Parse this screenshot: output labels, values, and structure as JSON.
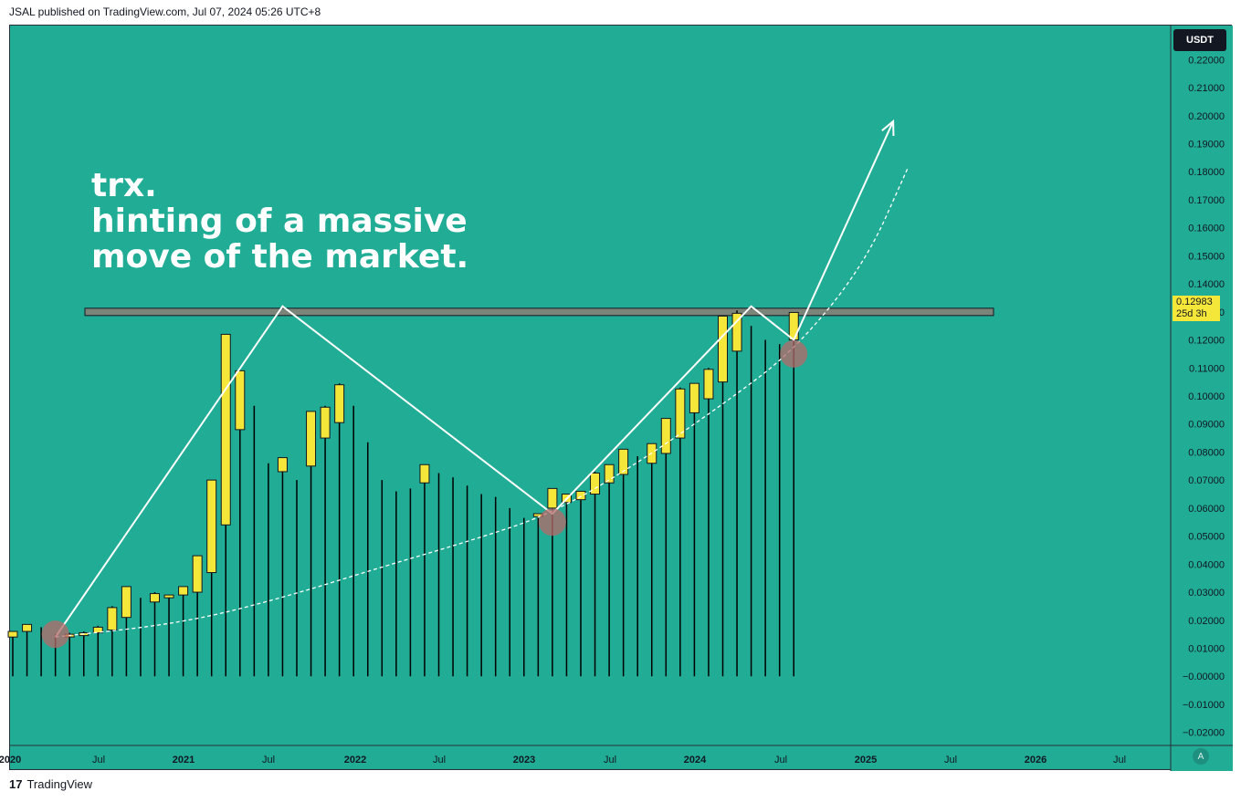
{
  "header": {
    "published": "JSAL published on TradingView.com, Jul 07, 2024 05:26 UTC+8"
  },
  "annotation": {
    "line1": "trx.",
    "line2": "hinting of a massive",
    "line3": "move of the market."
  },
  "price_scale": {
    "currency": "USDT",
    "last_price": "0.12983",
    "countdown": "25d 3h",
    "ticks": [
      "0.22000",
      "0.21000",
      "0.20000",
      "0.19000",
      "0.18000",
      "0.17000",
      "0.16000",
      "0.15000",
      "0.14000",
      "0.13000",
      "0.12000",
      "0.11000",
      "0.10000",
      "0.09000",
      "0.08000",
      "0.07000",
      "0.06000",
      "0.05000",
      "0.04000",
      "0.03000",
      "0.02000",
      "0.01000",
      "−0.00000",
      "−0.01000",
      "−0.02000"
    ]
  },
  "time_axis": {
    "labels": [
      "2020",
      "Jul",
      "2021",
      "Jul",
      "2022",
      "Jul",
      "2023",
      "Jul",
      "2024",
      "Jul",
      "2025",
      "Jul",
      "2026",
      "Jul"
    ]
  },
  "footer": {
    "brand": "TradingView",
    "logo_glyph": "17"
  },
  "colors": {
    "background": "#20ac95",
    "bull_body": "#f5e63a",
    "wick": "#000000",
    "drawing": "#ffffff",
    "marker": "#b76a6a",
    "resistance": "#7a8478"
  },
  "chart_data": {
    "type": "candlestick",
    "interval": "monthly",
    "title": "",
    "y_range": [
      -0.025,
      0.225
    ],
    "x_start": "2020-01",
    "candles": [
      {
        "t": "2020-01",
        "o": 0.014,
        "h": 0.016,
        "l": 0.0,
        "c": 0.016
      },
      {
        "t": "2020-02",
        "o": 0.016,
        "h": 0.0185,
        "l": 0.0,
        "c": 0.0185
      },
      {
        "t": "2020-03",
        "o": 0.0175,
        "h": 0.0175,
        "l": 0.0,
        "c": 0.016
      },
      {
        "t": "2020-04",
        "o": 0.0135,
        "h": 0.015,
        "l": 0.0,
        "c": 0.013
      },
      {
        "t": "2020-05",
        "o": 0.0145,
        "h": 0.0155,
        "l": 0.0,
        "c": 0.015
      },
      {
        "t": "2020-06",
        "o": 0.015,
        "h": 0.016,
        "l": 0.0,
        "c": 0.0155
      },
      {
        "t": "2020-07",
        "o": 0.0155,
        "h": 0.018,
        "l": 0.0,
        "c": 0.0175
      },
      {
        "t": "2020-08",
        "o": 0.0165,
        "h": 0.025,
        "l": 0.0,
        "c": 0.0245
      },
      {
        "t": "2020-09",
        "o": 0.021,
        "h": 0.032,
        "l": 0.0,
        "c": 0.032
      },
      {
        "t": "2020-10",
        "o": 0.027,
        "h": 0.028,
        "l": 0.0,
        "c": 0.026
      },
      {
        "t": "2020-11",
        "o": 0.0265,
        "h": 0.03,
        "l": 0.0,
        "c": 0.0295
      },
      {
        "t": "2020-12",
        "o": 0.028,
        "h": 0.029,
        "l": 0.0,
        "c": 0.029
      },
      {
        "t": "2021-01",
        "o": 0.029,
        "h": 0.032,
        "l": 0.0,
        "c": 0.032
      },
      {
        "t": "2021-02",
        "o": 0.03,
        "h": 0.043,
        "l": 0.0,
        "c": 0.043
      },
      {
        "t": "2021-03",
        "o": 0.037,
        "h": 0.07,
        "l": 0.0,
        "c": 0.07
      },
      {
        "t": "2021-04",
        "o": 0.054,
        "h": 0.122,
        "l": 0.0,
        "c": 0.122
      },
      {
        "t": "2021-05",
        "o": 0.088,
        "h": 0.109,
        "l": 0.0,
        "c": 0.109
      },
      {
        "t": "2021-06",
        "o": 0.096,
        "h": 0.0965,
        "l": 0.0,
        "c": 0.068
      },
      {
        "t": "2021-07",
        "o": 0.076,
        "h": 0.076,
        "l": 0.0,
        "c": 0.056
      },
      {
        "t": "2021-08",
        "o": 0.073,
        "h": 0.078,
        "l": 0.0,
        "c": 0.078
      },
      {
        "t": "2021-09",
        "o": 0.07,
        "h": 0.07,
        "l": 0.0,
        "c": 0.068
      },
      {
        "t": "2021-10",
        "o": 0.075,
        "h": 0.0945,
        "l": 0.0,
        "c": 0.0945
      },
      {
        "t": "2021-11",
        "o": 0.085,
        "h": 0.0965,
        "l": 0.0,
        "c": 0.096
      },
      {
        "t": "2021-12",
        "o": 0.0905,
        "h": 0.1045,
        "l": 0.0,
        "c": 0.104
      },
      {
        "t": "2022-01",
        "o": 0.096,
        "h": 0.0965,
        "l": 0.0,
        "c": 0.08
      },
      {
        "t": "2022-02",
        "o": 0.083,
        "h": 0.0835,
        "l": 0.0,
        "c": 0.062
      },
      {
        "t": "2022-03",
        "o": 0.07,
        "h": 0.07,
        "l": 0.0,
        "c": 0.066
      },
      {
        "t": "2022-04",
        "o": 0.066,
        "h": 0.066,
        "l": 0.0,
        "c": 0.062
      },
      {
        "t": "2022-05",
        "o": 0.067,
        "h": 0.067,
        "l": 0.0,
        "c": 0.059
      },
      {
        "t": "2022-06",
        "o": 0.069,
        "h": 0.0755,
        "l": 0.0,
        "c": 0.0755
      },
      {
        "t": "2022-07",
        "o": 0.072,
        "h": 0.0725,
        "l": 0.0,
        "c": 0.069
      },
      {
        "t": "2022-08",
        "o": 0.071,
        "h": 0.071,
        "l": 0.0,
        "c": 0.069
      },
      {
        "t": "2022-09",
        "o": 0.068,
        "h": 0.068,
        "l": 0.0,
        "c": 0.064
      },
      {
        "t": "2022-10",
        "o": 0.065,
        "h": 0.065,
        "l": 0.0,
        "c": 0.063
      },
      {
        "t": "2022-11",
        "o": 0.064,
        "h": 0.064,
        "l": 0.0,
        "c": 0.059
      },
      {
        "t": "2022-12",
        "o": 0.06,
        "h": 0.06,
        "l": 0.0,
        "c": 0.056
      },
      {
        "t": "2023-01",
        "o": 0.056,
        "h": 0.0565,
        "l": 0.0,
        "c": 0.054
      },
      {
        "t": "2023-02",
        "o": 0.057,
        "h": 0.058,
        "l": 0.0,
        "c": 0.058
      },
      {
        "t": "2023-03",
        "o": 0.06,
        "h": 0.067,
        "l": 0.0,
        "c": 0.067
      },
      {
        "t": "2023-04",
        "o": 0.062,
        "h": 0.065,
        "l": 0.0,
        "c": 0.065
      },
      {
        "t": "2023-05",
        "o": 0.063,
        "h": 0.066,
        "l": 0.0,
        "c": 0.066
      },
      {
        "t": "2023-06",
        "o": 0.065,
        "h": 0.073,
        "l": 0.0,
        "c": 0.0725
      },
      {
        "t": "2023-07",
        "o": 0.069,
        "h": 0.0755,
        "l": 0.0,
        "c": 0.0755
      },
      {
        "t": "2023-08",
        "o": 0.072,
        "h": 0.081,
        "l": 0.0,
        "c": 0.081
      },
      {
        "t": "2023-09",
        "o": 0.078,
        "h": 0.0785,
        "l": 0.0,
        "c": 0.076
      },
      {
        "t": "2023-10",
        "o": 0.076,
        "h": 0.083,
        "l": 0.0,
        "c": 0.083
      },
      {
        "t": "2023-11",
        "o": 0.0795,
        "h": 0.092,
        "l": 0.0,
        "c": 0.092
      },
      {
        "t": "2023-12",
        "o": 0.085,
        "h": 0.103,
        "l": 0.0,
        "c": 0.1025
      },
      {
        "t": "2024-01",
        "o": 0.094,
        "h": 0.1045,
        "l": 0.0,
        "c": 0.1045
      },
      {
        "t": "2024-02",
        "o": 0.099,
        "h": 0.11,
        "l": 0.0,
        "c": 0.1095
      },
      {
        "t": "2024-03",
        "o": 0.105,
        "h": 0.1285,
        "l": 0.0,
        "c": 0.1285
      },
      {
        "t": "2024-04",
        "o": 0.116,
        "h": 0.1305,
        "l": 0.0,
        "c": 0.1295
      },
      {
        "t": "2024-05",
        "o": 0.125,
        "h": 0.125,
        "l": 0.0,
        "c": 0.12
      },
      {
        "t": "2024-06",
        "o": 0.12,
        "h": 0.12,
        "l": 0.0,
        "c": 0.115
      },
      {
        "t": "2024-07",
        "o": 0.118,
        "h": 0.1185,
        "l": 0.0,
        "c": 0.114
      },
      {
        "t": "2024-08",
        "o": 0.12,
        "h": 0.128,
        "l": 0.0,
        "c": 0.1298
      }
    ],
    "resistance_level": 0.13,
    "drawings": {
      "zigzag": [
        {
          "t": "2020-04",
          "p": 0.014
        },
        {
          "t": "2021-08",
          "p": 0.132
        },
        {
          "t": "2023-03",
          "p": 0.058
        },
        {
          "t": "2024-05",
          "p": 0.132
        },
        {
          "t": "2024-08",
          "p": 0.12
        },
        {
          "t": "2025-03",
          "p": 0.198
        }
      ],
      "curve": [
        {
          "t": "2020-04",
          "p": 0.014
        },
        {
          "t": "2021-01",
          "p": 0.019
        },
        {
          "t": "2021-08",
          "p": 0.028
        },
        {
          "t": "2022-03",
          "p": 0.039
        },
        {
          "t": "2022-09",
          "p": 0.048
        },
        {
          "t": "2023-03",
          "p": 0.058
        },
        {
          "t": "2023-09",
          "p": 0.076
        },
        {
          "t": "2024-03",
          "p": 0.097
        },
        {
          "t": "2024-08",
          "p": 0.116
        },
        {
          "t": "2025-01",
          "p": 0.147
        },
        {
          "t": "2025-04",
          "p": 0.181
        }
      ],
      "markers": [
        {
          "t": "2020-04",
          "p": 0.015
        },
        {
          "t": "2023-03",
          "p": 0.055
        },
        {
          "t": "2024-08",
          "p": 0.115
        }
      ]
    }
  }
}
